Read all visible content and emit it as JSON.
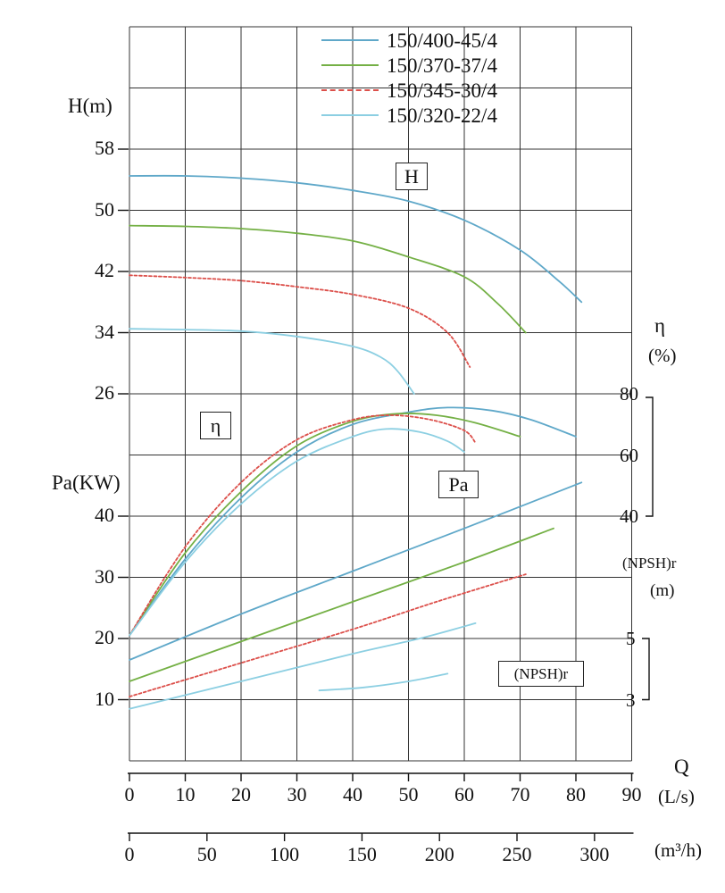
{
  "labels": {
    "h_axis": "H(m)",
    "pa_axis": "Pa(KW)",
    "eta_axis_symbol": "η",
    "eta_axis_unit": "(%)",
    "npsh_axis_name": "(NPSH)r",
    "npsh_axis_unit": "(m)",
    "q_axis": "Q",
    "q_unit_ls": "(L/s)",
    "q_unit_m3h": "(m³/h)",
    "box_h": "H",
    "box_eta": "η",
    "box_pa": "Pa",
    "box_npsh": "(NPSH)r"
  },
  "legend": {
    "items": [
      {
        "label": "150/400-45/4",
        "color": "#5FA8C9",
        "style": "solid"
      },
      {
        "label": "150/370-37/4",
        "color": "#74B045",
        "style": "solid"
      },
      {
        "label": "150/345-30/4",
        "color": "#DC4F4A",
        "style": "dashed"
      },
      {
        "label": "150/320-22/4",
        "color": "#8CCFE2",
        "style": "solid"
      }
    ]
  },
  "chart_data": {
    "type": "line",
    "grid": true,
    "legend_position": "top-center",
    "x_axis": {
      "label": "Q",
      "primary_unit": "(L/s)",
      "primary_ticks": [
        0,
        10,
        20,
        30,
        40,
        50,
        60,
        70,
        80,
        90
      ],
      "secondary_unit": "(m³/h)",
      "secondary_ticks": [
        0,
        50,
        100,
        150,
        200,
        250,
        300
      ],
      "range_ls": [
        0,
        90
      ]
    },
    "y_axes": {
      "H": {
        "label": "H(m)",
        "ticks": [
          58,
          50,
          42,
          34,
          26
        ],
        "units_per_gridrow": 8
      },
      "eta": {
        "label": "η(%)",
        "ticks": [
          80,
          60,
          40
        ],
        "range": [
          0,
          80
        ],
        "units_per_gridrow": 20
      },
      "Pa": {
        "label": "Pa(KW)",
        "ticks": [
          40,
          30,
          20,
          10
        ],
        "units_per_gridrow": 10
      },
      "NPSH": {
        "label": "(NPSH)r (m)",
        "ticks": [
          5,
          3
        ],
        "units_per_gridrow": 2
      }
    },
    "series": [
      {
        "name": "150/400-45/4",
        "quantity": "H",
        "color": "#5FA8C9",
        "dash": "",
        "points": [
          [
            0,
            54.5
          ],
          [
            10,
            54.5
          ],
          [
            20,
            54.2
          ],
          [
            30,
            53.6
          ],
          [
            40,
            52.6
          ],
          [
            50,
            51.2
          ],
          [
            60,
            48.7
          ],
          [
            70,
            44.8
          ],
          [
            77,
            40.7
          ],
          [
            81,
            38
          ]
        ]
      },
      {
        "name": "150/370-37/4",
        "quantity": "H",
        "color": "#74B045",
        "dash": "",
        "points": [
          [
            0,
            48
          ],
          [
            10,
            47.9
          ],
          [
            20,
            47.6
          ],
          [
            30,
            47
          ],
          [
            40,
            46
          ],
          [
            50,
            43.9
          ],
          [
            60,
            41.3
          ],
          [
            66,
            37.8
          ],
          [
            71,
            34
          ]
        ]
      },
      {
        "name": "150/345-30/4",
        "quantity": "H",
        "color": "#DC4F4A",
        "dash": "3 2.5",
        "points": [
          [
            0,
            41.5
          ],
          [
            10,
            41.2
          ],
          [
            20,
            40.8
          ],
          [
            30,
            40
          ],
          [
            40,
            39
          ],
          [
            50,
            37.2
          ],
          [
            57,
            34
          ],
          [
            61,
            29.5
          ]
        ]
      },
      {
        "name": "150/320-22/4",
        "quantity": "H",
        "color": "#8CCFE2",
        "dash": "",
        "points": [
          [
            0,
            34.5
          ],
          [
            10,
            34.4
          ],
          [
            20,
            34.2
          ],
          [
            30,
            33.5
          ],
          [
            40,
            32.2
          ],
          [
            45,
            30.8
          ],
          [
            48,
            29
          ],
          [
            51,
            26
          ]
        ]
      },
      {
        "name": "150/400-45/4",
        "quantity": "eta",
        "color": "#5FA8C9",
        "dash": "",
        "points": [
          [
            0,
            1
          ],
          [
            10,
            26
          ],
          [
            20,
            46
          ],
          [
            30,
            61
          ],
          [
            40,
            70
          ],
          [
            50,
            74
          ],
          [
            57,
            75.5
          ],
          [
            65,
            74.5
          ],
          [
            72,
            71.5
          ],
          [
            80,
            66
          ]
        ]
      },
      {
        "name": "150/370-37/4",
        "quantity": "eta",
        "color": "#74B045",
        "dash": "",
        "points": [
          [
            0,
            1
          ],
          [
            10,
            28
          ],
          [
            20,
            48
          ],
          [
            30,
            63
          ],
          [
            40,
            71
          ],
          [
            48,
            73.5
          ],
          [
            55,
            73
          ],
          [
            62,
            70.5
          ],
          [
            70,
            66
          ]
        ]
      },
      {
        "name": "150/345-30/4",
        "quantity": "eta",
        "color": "#DC4F4A",
        "dash": "3 2.5",
        "points": [
          [
            0,
            1
          ],
          [
            10,
            30
          ],
          [
            20,
            51
          ],
          [
            30,
            65
          ],
          [
            40,
            71.5
          ],
          [
            47,
            73
          ],
          [
            54,
            71.5
          ],
          [
            60,
            68
          ],
          [
            62,
            64
          ]
        ]
      },
      {
        "name": "150/320-22/4",
        "quantity": "eta",
        "color": "#8CCFE2",
        "dash": "",
        "points": [
          [
            0,
            1
          ],
          [
            10,
            25
          ],
          [
            20,
            44
          ],
          [
            30,
            58
          ],
          [
            40,
            66
          ],
          [
            46,
            68.5
          ],
          [
            52,
            67.5
          ],
          [
            57,
            64.5
          ],
          [
            60,
            61
          ]
        ]
      },
      {
        "name": "150/400-45/4",
        "quantity": "Pa",
        "color": "#5FA8C9",
        "dash": "",
        "points": [
          [
            0,
            16.5
          ],
          [
            20,
            24
          ],
          [
            40,
            31
          ],
          [
            60,
            38
          ],
          [
            81,
            45.5
          ]
        ]
      },
      {
        "name": "150/370-37/4",
        "quantity": "Pa",
        "color": "#74B045",
        "dash": "",
        "points": [
          [
            0,
            13
          ],
          [
            20,
            19.5
          ],
          [
            40,
            26
          ],
          [
            60,
            32.5
          ],
          [
            76,
            38
          ]
        ]
      },
      {
        "name": "150/345-30/4",
        "quantity": "Pa",
        "color": "#DC4F4A",
        "dash": "3 2.5",
        "points": [
          [
            0,
            10.5
          ],
          [
            20,
            16
          ],
          [
            40,
            21.5
          ],
          [
            55,
            26
          ],
          [
            71,
            30.5
          ]
        ]
      },
      {
        "name": "150/320-22/4",
        "quantity": "Pa",
        "color": "#8CCFE2",
        "dash": "",
        "points": [
          [
            0,
            8.5
          ],
          [
            20,
            13
          ],
          [
            40,
            17.5
          ],
          [
            52,
            20
          ],
          [
            62,
            22.5
          ]
        ]
      },
      {
        "name": "(NPSH)r",
        "quantity": "NPSH",
        "color": "#8CCFE2",
        "dash": "",
        "points": [
          [
            34,
            3.3
          ],
          [
            42,
            3.4
          ],
          [
            50,
            3.6
          ],
          [
            57,
            3.85
          ]
        ]
      }
    ]
  }
}
